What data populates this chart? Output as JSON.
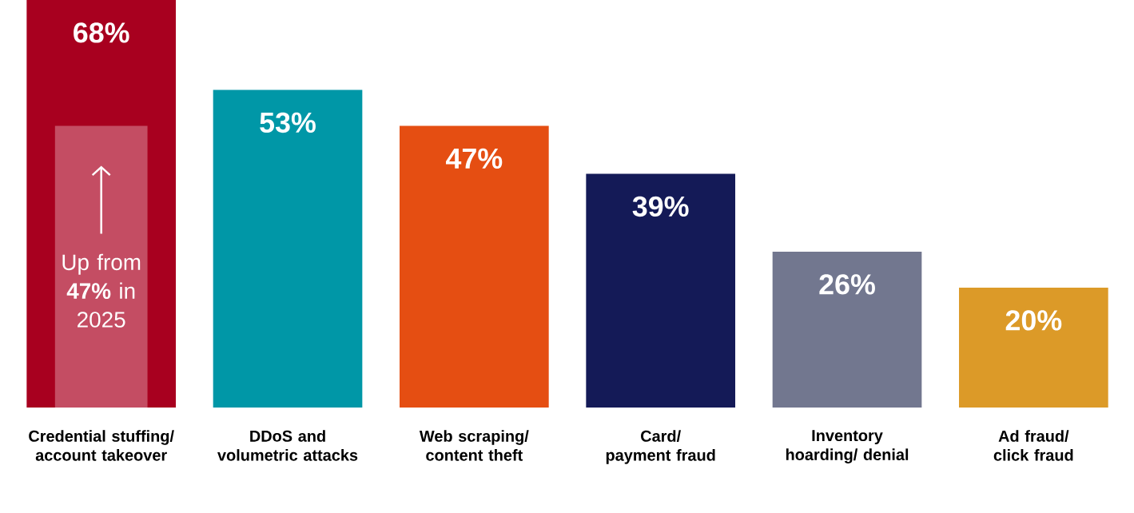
{
  "chart_data": {
    "type": "bar",
    "categories": [
      "Credential stuffing/ account takeover",
      "DDoS and volumetric attacks",
      "Web scraping/ content theft",
      "Card/ payment fraud",
      "Inventory hoarding/ denial",
      "Ad fraud/ click fraud"
    ],
    "series": [
      {
        "colors": [
          "#a8001f",
          "#0097a7",
          "#e54e12",
          "#141a57",
          "#72778f",
          "#dc9a28"
        ],
        "values": [
          68,
          53,
          47,
          39,
          26,
          20
        ],
        "value_labels": [
          "68%",
          "53%",
          "47%",
          "39%",
          "26%",
          "20%"
        ]
      },
      {
        "color": "#c44d63",
        "values": [
          47,
          null,
          null,
          null,
          null,
          null
        ],
        "value_labels": [
          "Up from **47%** in 2025",
          null,
          null,
          null,
          null,
          null
        ]
      }
    ]
  }
}
